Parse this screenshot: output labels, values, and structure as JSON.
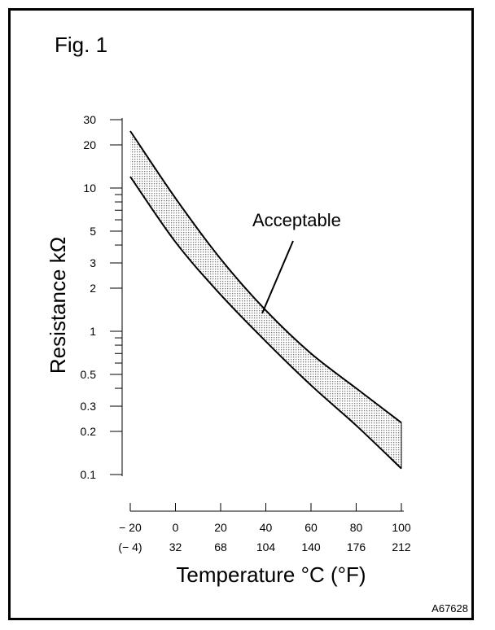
{
  "figure": {
    "label": "Fig. 1",
    "code": "A67628"
  },
  "chart_data": {
    "type": "area",
    "ylabel": "Resistance kΩ",
    "xlabel": "Temperature °C (°F)",
    "y_scale": "log",
    "ylim": [
      0.1,
      30
    ],
    "xlim": [
      -20,
      100
    ],
    "y_ticks": [
      {
        "value": 0.1,
        "label": "0.1"
      },
      {
        "value": 0.2,
        "label": "0.2"
      },
      {
        "value": 0.3,
        "label": "0.3"
      },
      {
        "value": 0.5,
        "label": "0.5"
      },
      {
        "value": 1,
        "label": "1"
      },
      {
        "value": 2,
        "label": "2"
      },
      {
        "value": 3,
        "label": "3"
      },
      {
        "value": 5,
        "label": "5"
      },
      {
        "value": 10,
        "label": "10"
      },
      {
        "value": 20,
        "label": "20"
      },
      {
        "value": 30,
        "label": "30"
      }
    ],
    "y_minor_ticks": [
      0.4,
      0.6,
      0.7,
      0.8,
      0.9,
      4,
      6,
      7,
      8,
      9
    ],
    "x_ticks": [
      {
        "value": -20,
        "label": "− 20",
        "sublabel": "(− 4)"
      },
      {
        "value": 0,
        "label": "0",
        "sublabel": "32"
      },
      {
        "value": 20,
        "label": "20",
        "sublabel": "68"
      },
      {
        "value": 40,
        "label": "40",
        "sublabel": "104"
      },
      {
        "value": 60,
        "label": "60",
        "sublabel": "140"
      },
      {
        "value": 80,
        "label": "80",
        "sublabel": "176"
      },
      {
        "value": 100,
        "label": "100",
        "sublabel": "212"
      }
    ],
    "band": {
      "x": [
        -20,
        0,
        20,
        40,
        60,
        80,
        100
      ],
      "upper": [
        25,
        8.5,
        3.2,
        1.4,
        0.7,
        0.4,
        0.23
      ],
      "lower": [
        12,
        4.2,
        1.8,
        0.85,
        0.42,
        0.22,
        0.11
      ],
      "fill": "#c8c8c8"
    },
    "annotations": [
      {
        "text": "Acceptable",
        "x": 40,
        "y": 1.5
      }
    ]
  }
}
